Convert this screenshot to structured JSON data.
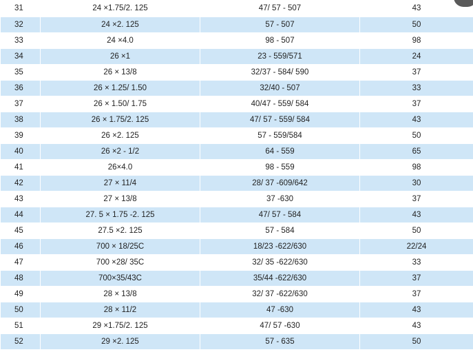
{
  "rows": [
    [
      "31",
      "24 ×1.75/2. 125",
      "47/ 57 - 507",
      "43"
    ],
    [
      "32",
      "24 ×2. 125",
      "57 - 507",
      "50"
    ],
    [
      "33",
      "24 ×4.0",
      "98 - 507",
      "98"
    ],
    [
      "34",
      "26 ×1",
      "23 - 559/571",
      "24"
    ],
    [
      "35",
      "26 × 13/8",
      "32/37 - 584/ 590",
      "37"
    ],
    [
      "36",
      "26 × 1.25/ 1.50",
      "32/40 - 507",
      "33"
    ],
    [
      "37",
      "26 × 1.50/ 1.75",
      "40/47 - 559/ 584",
      "37"
    ],
    [
      "38",
      "26 × 1.75/2. 125",
      "47/ 57 - 559/ 584",
      "43"
    ],
    [
      "39",
      "26 ×2. 125",
      "57 - 559/584",
      "50"
    ],
    [
      "40",
      "26 ×2 - 1/2",
      "64 - 559",
      "65"
    ],
    [
      "41",
      "26×4.0",
      "98 - 559",
      "98"
    ],
    [
      "42",
      "27 × 11/4",
      "28/ 37 -609/642",
      "30"
    ],
    [
      "43",
      "27 × 13/8",
      "37 -630",
      "37"
    ],
    [
      "44",
      "27. 5 × 1.75 -2. 125",
      "47/ 57 - 584",
      "43"
    ],
    [
      "45",
      "27.5 ×2. 125",
      "57 - 584",
      "50"
    ],
    [
      "46",
      "700 × 18/25C",
      "18/23 -622/630",
      "22/24"
    ],
    [
      "47",
      "700 ×28/ 35C",
      "32/ 35 -622/630",
      "33"
    ],
    [
      "48",
      "700×35/43C",
      "35/44 -622/630",
      "37"
    ],
    [
      "49",
      "28 × 13/8",
      "32/ 37 -622/630",
      "37"
    ],
    [
      "50",
      "28 × 11/2",
      "47 -630",
      "43"
    ],
    [
      "51",
      "29 ×1.75/2. 125",
      "47/ 57 -630",
      "43"
    ],
    [
      "52",
      "29 ×2. 125",
      "57 - 635",
      "50"
    ]
  ]
}
